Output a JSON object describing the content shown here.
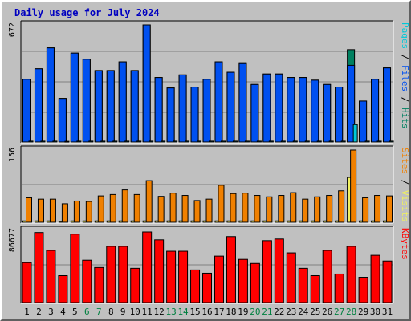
{
  "title": "Daily usage for July 2024",
  "colors": {
    "pages": "#00c8d8",
    "files": "#0050f0",
    "hits": "#008060",
    "visits": "#f0f060",
    "sites": "#f08000",
    "kbytes": "#ff0000",
    "title": "#0000c0",
    "weekend_tick": "#008040",
    "weekday_tick": "#000000",
    "panel_bg": "#c0c0c0",
    "grid": "#808080"
  },
  "chart_data": [
    {
      "type": "bar",
      "title": "Daily usage for July 2024",
      "ylabel": "Pages / Files / Hits",
      "ymax_label": "672",
      "ylim": [
        0,
        672
      ],
      "legend_placement": "right",
      "categories": [
        "1",
        "2",
        "3",
        "4",
        "5",
        "6",
        "7",
        "8",
        "9",
        "10",
        "11",
        "12",
        "13",
        "14",
        "15",
        "16",
        "17",
        "18",
        "19",
        "20",
        "21",
        "22",
        "23",
        "24",
        "25",
        "26",
        "27",
        "28",
        "29",
        "30",
        "31"
      ],
      "series": [
        {
          "name": "Hits",
          "values": [
            360,
            420,
            540,
            250,
            510,
            475,
            410,
            410,
            460,
            410,
            672,
            370,
            310,
            385,
            315,
            360,
            460,
            400,
            455,
            330,
            390,
            390,
            370,
            370,
            355,
            330,
            315,
            530,
            235,
            360,
            425
          ]
        },
        {
          "name": "Files",
          "values": [
            360,
            420,
            540,
            250,
            510,
            475,
            410,
            410,
            460,
            410,
            672,
            370,
            310,
            385,
            315,
            360,
            460,
            400,
            450,
            330,
            390,
            390,
            370,
            370,
            355,
            330,
            315,
            440,
            235,
            360,
            425
          ]
        },
        {
          "name": "Pages",
          "values": [
            5,
            5,
            5,
            4,
            5,
            5,
            5,
            5,
            5,
            5,
            5,
            5,
            5,
            5,
            5,
            5,
            5,
            5,
            5,
            5,
            5,
            5,
            5,
            5,
            5,
            5,
            5,
            100,
            5,
            5,
            5
          ]
        }
      ]
    },
    {
      "type": "bar",
      "ylabel": "Sites / Visits",
      "ymax_label": "156",
      "ylim": [
        0,
        156
      ],
      "legend_placement": "right",
      "categories": [
        "1",
        "2",
        "3",
        "4",
        "5",
        "6",
        "7",
        "8",
        "9",
        "10",
        "11",
        "12",
        "13",
        "14",
        "15",
        "16",
        "17",
        "18",
        "19",
        "20",
        "21",
        "22",
        "23",
        "24",
        "25",
        "26",
        "27",
        "28",
        "29",
        "30",
        "31"
      ],
      "series": [
        {
          "name": "Sites",
          "values": [
            53,
            50,
            50,
            40,
            46,
            45,
            57,
            60,
            70,
            60,
            90,
            56,
            63,
            58,
            47,
            50,
            80,
            62,
            63,
            58,
            55,
            58,
            64,
            50,
            55,
            58,
            68,
            156,
            53,
            58,
            57
          ]
        },
        {
          "name": "Visits",
          "values": [
            3,
            3,
            3,
            2,
            3,
            3,
            3,
            3,
            3,
            3,
            3,
            3,
            3,
            3,
            3,
            3,
            3,
            3,
            3,
            3,
            3,
            3,
            3,
            3,
            3,
            3,
            3,
            97,
            3,
            3,
            3
          ]
        }
      ]
    },
    {
      "type": "bar",
      "ylabel": "KBytes",
      "ymax_label": "86677",
      "ylim": [
        0,
        86677
      ],
      "legend_placement": "right",
      "categories": [
        "1",
        "2",
        "3",
        "4",
        "5",
        "6",
        "7",
        "8",
        "9",
        "10",
        "11",
        "12",
        "13",
        "14",
        "15",
        "16",
        "17",
        "18",
        "19",
        "20",
        "21",
        "22",
        "23",
        "24",
        "25",
        "26",
        "27",
        "28",
        "29",
        "30",
        "31"
      ],
      "series": [
        {
          "name": "KBytes",
          "values": [
            49000,
            86000,
            64000,
            33000,
            84000,
            52000,
            43000,
            69000,
            69000,
            42000,
            86677,
            77000,
            63000,
            63000,
            40000,
            36000,
            57000,
            81000,
            53000,
            48000,
            76000,
            78000,
            61000,
            42000,
            33000,
            64000,
            35000,
            69000,
            31000,
            58000,
            51000
          ]
        }
      ]
    }
  ]
}
